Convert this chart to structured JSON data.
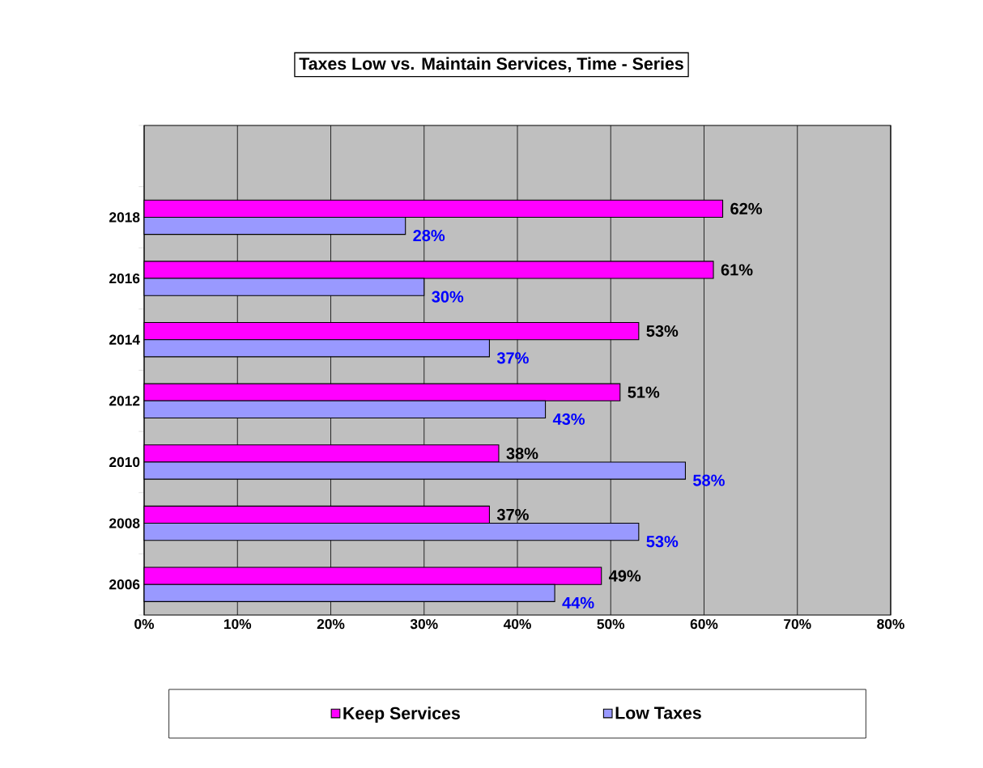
{
  "chart_data": {
    "type": "bar",
    "orientation": "horizontal",
    "title": "Taxes Low vs. Maintain Services, Time - Series",
    "categories": [
      null,
      "2018",
      "2016",
      "2014",
      "2012",
      "2010",
      "2008",
      "2006"
    ],
    "series": [
      {
        "name": "Keep Services",
        "color": "#ff00ff",
        "values": [
          null,
          62,
          61,
          53,
          51,
          38,
          37,
          49
        ],
        "value_labels": [
          null,
          "62%",
          "61%",
          "53%",
          "51%",
          "38%",
          "37%",
          "49%"
        ]
      },
      {
        "name": "Low Taxes",
        "color": "#9999ff",
        "values": [
          null,
          28,
          30,
          37,
          43,
          58,
          53,
          44
        ],
        "value_labels": [
          null,
          "28%",
          "30%",
          "37%",
          "43%",
          "58%",
          "53%",
          "44%"
        ]
      }
    ],
    "xlim": [
      0,
      80
    ],
    "xticks": [
      {
        "value": 0,
        "label": "0%"
      },
      {
        "value": 10,
        "label": "10%"
      },
      {
        "value": 20,
        "label": "20%"
      },
      {
        "value": 30,
        "label": "30%"
      },
      {
        "value": 40,
        "label": "40%"
      },
      {
        "value": 50,
        "label": "50%"
      },
      {
        "value": 60,
        "label": "60%"
      },
      {
        "value": 70,
        "label": "70%"
      },
      {
        "value": 80,
        "label": "80%"
      }
    ],
    "grid": "x",
    "legend": "bottom"
  }
}
